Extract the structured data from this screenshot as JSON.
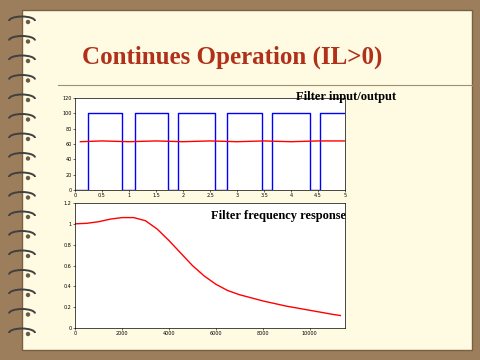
{
  "slide": {
    "title": "Continues Operation (IL>0)"
  },
  "chart_data": [
    {
      "type": "line",
      "title": "Filter input/output",
      "xlim": [
        0,
        5
      ],
      "xticks": [
        0,
        0.5,
        1,
        1.5,
        2,
        2.5,
        3,
        3.5,
        4,
        4.5,
        5
      ],
      "ylim": [
        0,
        120
      ],
      "yticks": [
        0,
        20,
        40,
        60,
        80,
        100,
        120
      ],
      "grid": false,
      "series": [
        {
          "color": "#0000ff",
          "x": [
            0,
            0.24,
            0.24,
            0.87,
            0.87,
            1.11,
            1.11,
            1.72,
            1.72,
            1.91,
            1.91,
            2.59,
            2.59,
            2.81,
            2.81,
            3.46,
            3.46,
            3.65,
            3.65,
            4.35,
            4.35,
            4.54,
            4.54,
            5
          ],
          "values": [
            0,
            0,
            100,
            100,
            0,
            0,
            100,
            100,
            0,
            0,
            100,
            100,
            0,
            0,
            100,
            100,
            0,
            0,
            100,
            100,
            0,
            0,
            100,
            100
          ]
        },
        {
          "color": "#ff0000",
          "x": [
            0.1,
            0.5,
            1,
            1.5,
            2,
            2.5,
            3,
            3.5,
            4,
            4.5,
            5
          ],
          "values": [
            63,
            64,
            63,
            64,
            63,
            64,
            63,
            64,
            63,
            64,
            64
          ]
        }
      ]
    },
    {
      "type": "line",
      "title": "Filter frequency response",
      "xlim": [
        0,
        11500
      ],
      "xticks": [
        0,
        2000,
        4000,
        6000,
        8000,
        10000
      ],
      "ylim": [
        0,
        1.2
      ],
      "yticks": [
        0,
        0.2,
        0.4,
        0.6,
        0.8,
        1,
        1.2
      ],
      "grid": false,
      "series": [
        {
          "color": "#ff0000",
          "x": [
            0,
            500,
            1000,
            1500,
            2000,
            2500,
            3000,
            3500,
            4000,
            4500,
            5000,
            5500,
            6000,
            6500,
            7000,
            7500,
            8000,
            8500,
            9000,
            9500,
            10000,
            10500,
            11000,
            11300
          ],
          "values": [
            1.0,
            1.005,
            1.02,
            1.045,
            1.06,
            1.06,
            1.03,
            0.95,
            0.84,
            0.72,
            0.6,
            0.5,
            0.42,
            0.36,
            0.32,
            0.29,
            0.26,
            0.235,
            0.21,
            0.19,
            0.17,
            0.15,
            0.13,
            0.12
          ]
        }
      ]
    }
  ]
}
